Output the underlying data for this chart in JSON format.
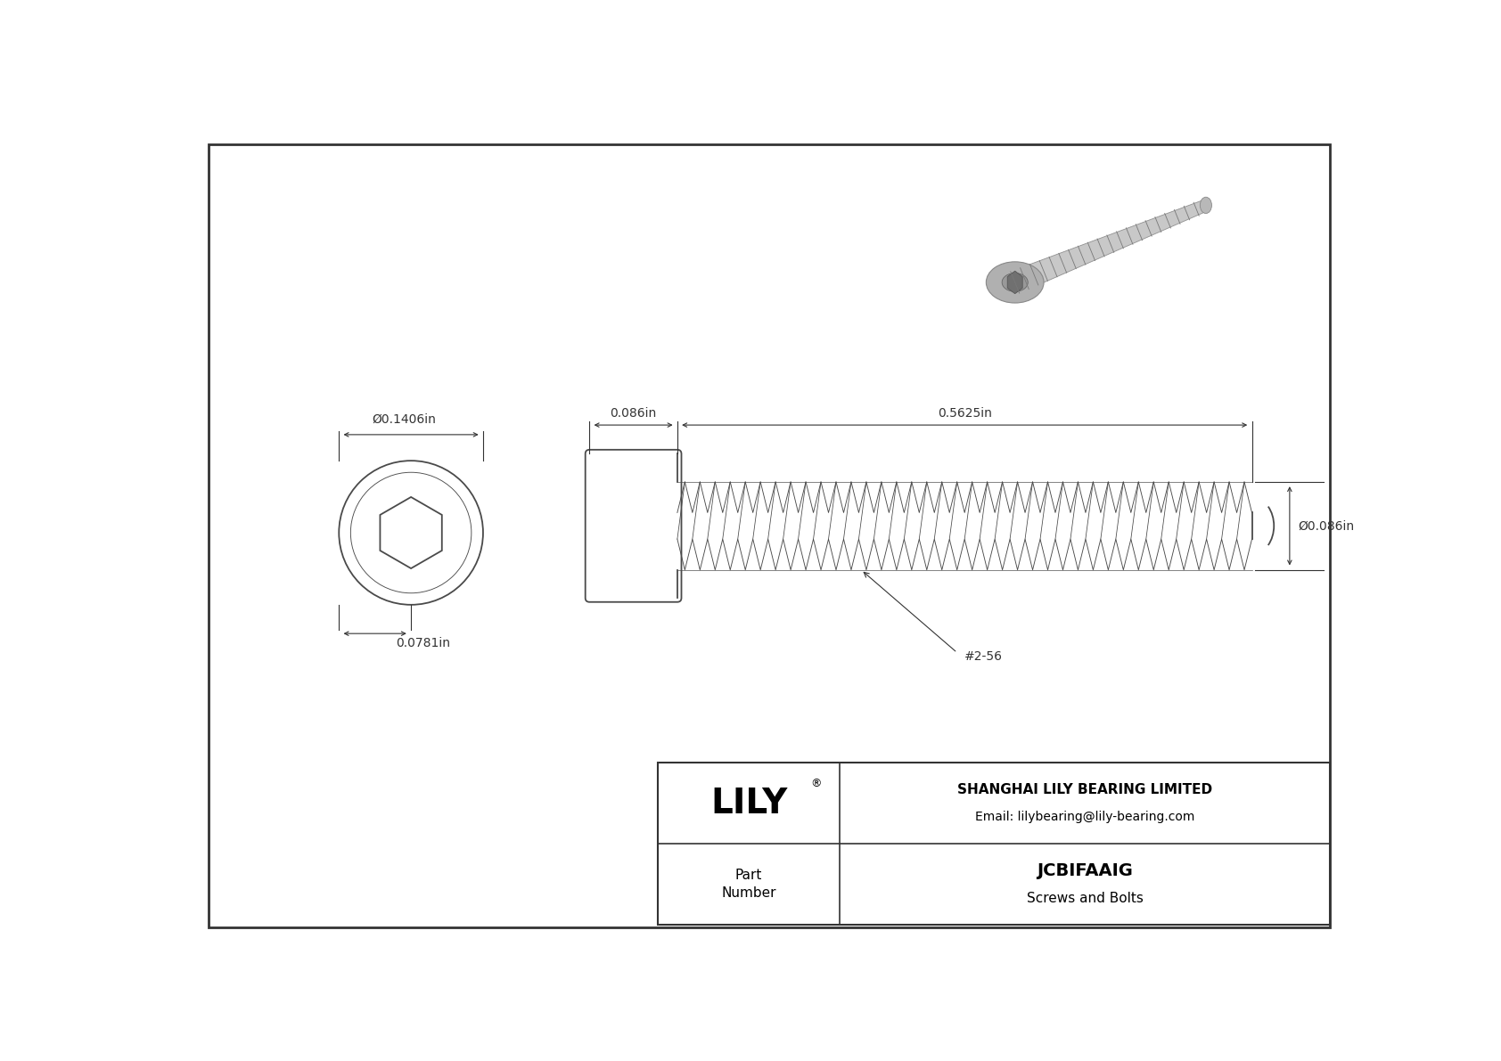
{
  "bg_color": "#ffffff",
  "line_color": "#4a4a4a",
  "dim_color": "#333333",
  "title_company": "SHANGHAI LILY BEARING LIMITED",
  "title_email": "Email: lilybearing@lily-bearing.com",
  "part_number": "JCBIFAAIG",
  "part_category": "Screws and Bolts",
  "brand": "LILY",
  "dim_head_diameter": "Ø0.1406in",
  "dim_head_length": "0.0781in",
  "dim_shaft_head": "0.086in",
  "dim_shaft_length": "0.5625in",
  "dim_shaft_diameter": "Ø0.086in",
  "thread_label": "#2-56",
  "border_color": "#333333",
  "fig_width": 16.84,
  "fig_height": 11.91
}
